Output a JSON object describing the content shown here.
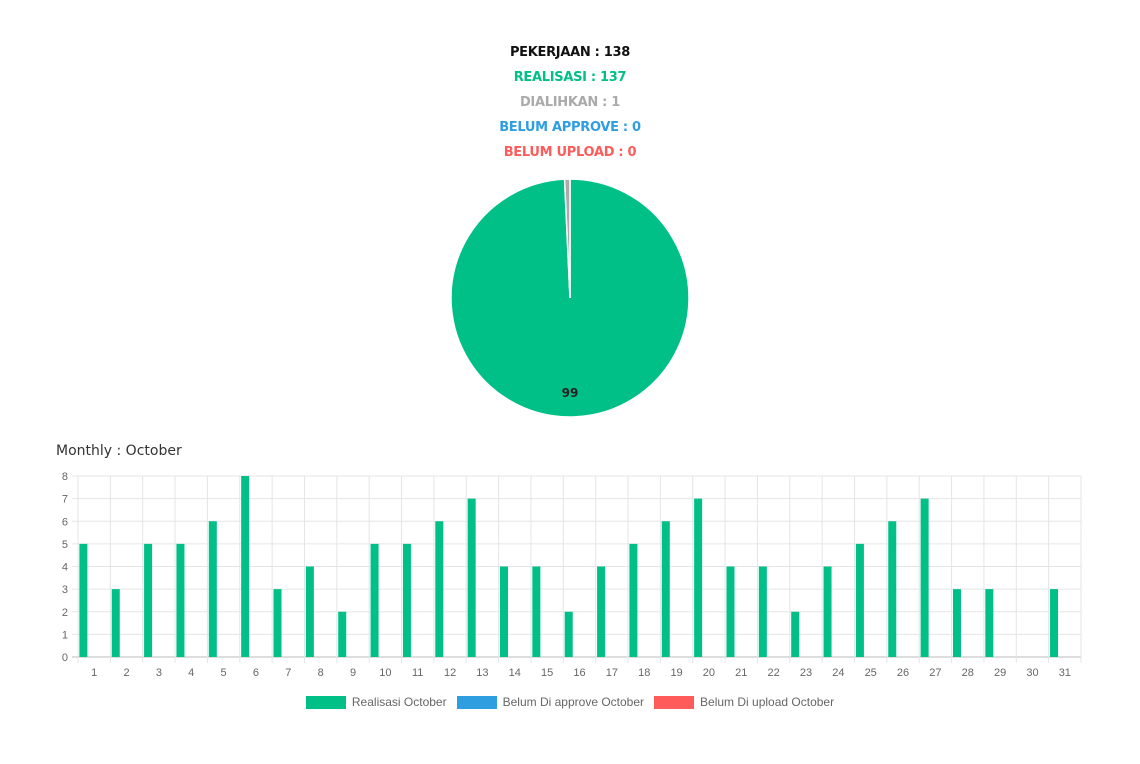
{
  "summary": {
    "pekerjaan": "PEKERJAAN : 138",
    "realisasi": "REALISASI : 137",
    "dialihkan": "DIALIHKAN : 1",
    "belum_approve": "BELUM APPROVE : 0",
    "belum_upload": "BELUM UPLOAD : 0"
  },
  "colors": {
    "realisasi": "#00bf87",
    "dialihkan": "#aaaaaa",
    "belum_approve": "#2e9ee0",
    "belum_upload": "#ff5b5b"
  },
  "chart_data": [
    {
      "type": "pie",
      "slices": [
        {
          "value": 137,
          "color": "#00bf87"
        },
        {
          "value": 1,
          "color": "#aaaaaa"
        }
      ],
      "data_label": "99"
    },
    {
      "type": "bar",
      "title": "Monthly : October",
      "categories": [
        "1",
        "2",
        "3",
        "4",
        "5",
        "6",
        "7",
        "8",
        "9",
        "10",
        "11",
        "12",
        "13",
        "14",
        "15",
        "16",
        "17",
        "18",
        "19",
        "20",
        "21",
        "22",
        "23",
        "24",
        "25",
        "26",
        "27",
        "28",
        "29",
        "30",
        "31"
      ],
      "series": [
        {
          "name": "Realisasi October",
          "color": "#00bf87",
          "values": [
            5,
            3,
            5,
            5,
            6,
            8,
            3,
            4,
            2,
            5,
            5,
            6,
            7,
            4,
            4,
            2,
            4,
            5,
            6,
            7,
            4,
            4,
            2,
            4,
            5,
            6,
            7,
            3,
            3,
            0,
            3
          ]
        },
        {
          "name": "Belum Di approve October",
          "color": "#2e9ee0",
          "values": [
            0,
            0,
            0,
            0,
            0,
            0,
            0,
            0,
            0,
            0,
            0,
            0,
            0,
            0,
            0,
            0,
            0,
            0,
            0,
            0,
            0,
            0,
            0,
            0,
            0,
            0,
            0,
            0,
            0,
            0,
            0
          ]
        },
        {
          "name": "Belum Di upload October",
          "color": "#ff5b5b",
          "values": [
            0,
            0,
            0,
            0,
            0,
            0,
            0,
            0,
            0,
            0,
            0,
            0,
            0,
            0,
            0,
            0,
            0,
            0,
            0,
            0,
            0,
            0,
            0,
            0,
            0,
            0,
            0,
            0,
            0,
            0,
            0
          ]
        }
      ],
      "ylim": [
        0,
        8
      ],
      "yticks": [
        "0",
        "1",
        "2",
        "3",
        "4",
        "5",
        "6",
        "7",
        "8"
      ],
      "grid": true,
      "legend_position": "bottom"
    }
  ]
}
